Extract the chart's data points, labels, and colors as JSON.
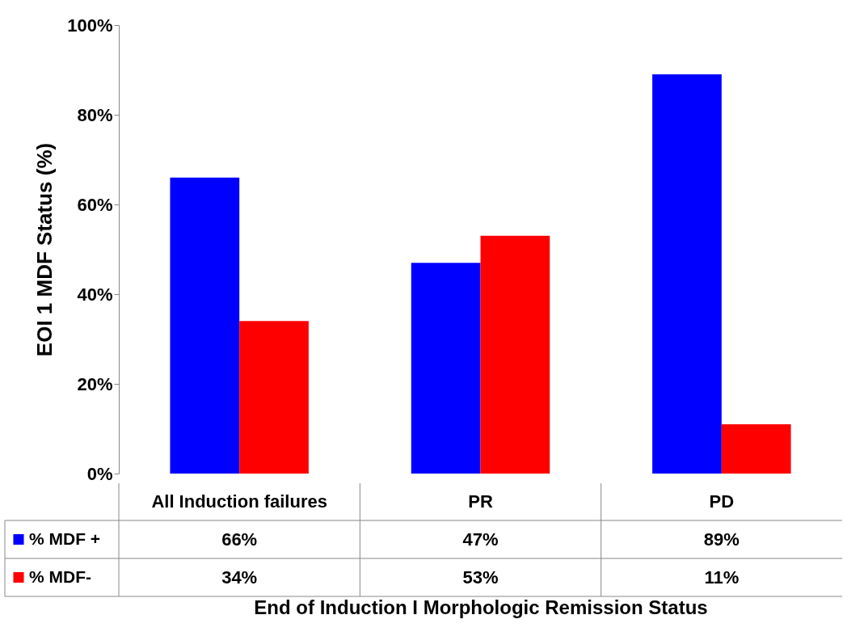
{
  "chart_data": {
    "type": "bar",
    "xlabel": "End of Induction I Morphologic Remission Status",
    "ylabel": "EOI 1 MDF Status (%)",
    "categories": [
      "All Induction failures",
      "PR",
      "PD"
    ],
    "series": [
      {
        "name": "% MDF +",
        "color": "#0000ff",
        "values": [
          66,
          47,
          89
        ],
        "value_labels": [
          "66%",
          "47%",
          "89%"
        ]
      },
      {
        "name": "% MDF-",
        "color": "#ff0000",
        "values": [
          34,
          53,
          11
        ],
        "value_labels": [
          "34%",
          "53%",
          "11%"
        ]
      }
    ],
    "ylim": [
      0,
      100
    ],
    "yticks": [
      {
        "value": 0,
        "label": "0%"
      },
      {
        "value": 20,
        "label": "20%"
      },
      {
        "value": 40,
        "label": "40%"
      },
      {
        "value": 60,
        "label": "60%"
      },
      {
        "value": 80,
        "label": "80%"
      },
      {
        "value": 100,
        "label": "100%"
      }
    ],
    "grid": false,
    "legend": "bottom left"
  }
}
